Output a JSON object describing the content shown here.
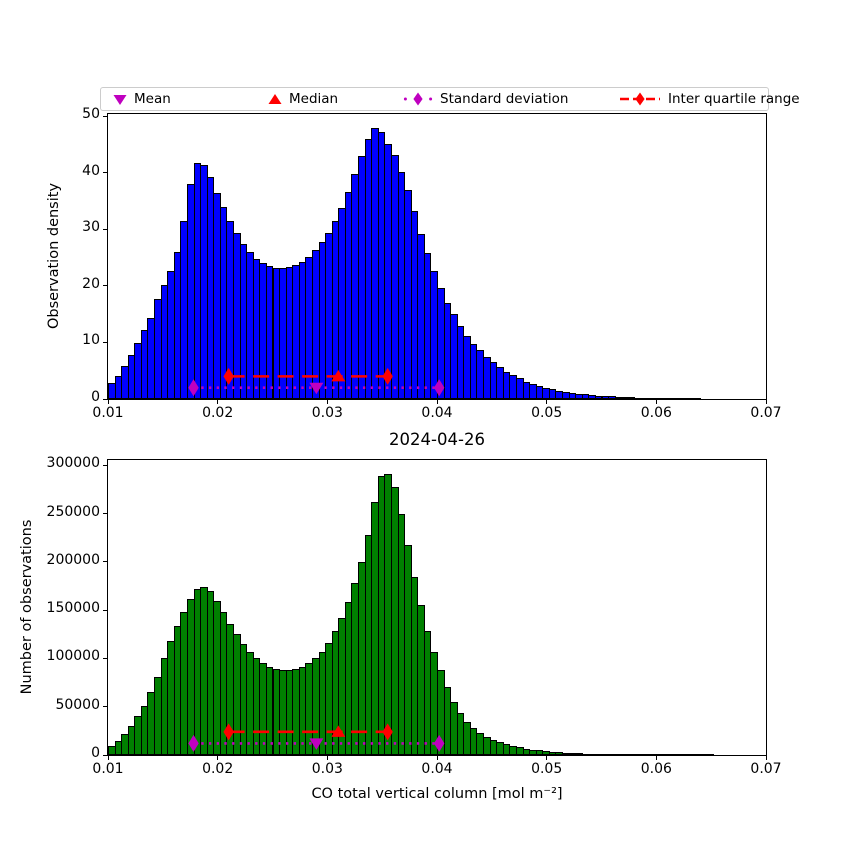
{
  "title": "2024-04-26",
  "xlabel": "CO total vertical column [mol m⁻²]",
  "colors": {
    "top_bars": "#0000ff",
    "bottom_bars": "#008000",
    "bar_edge": "#000000",
    "magenta": "#bf00bf",
    "red": "#ff0000",
    "legend_border": "#cccccc"
  },
  "legend": [
    {
      "label": "Mean",
      "marker": "triangle-down",
      "line": "none",
      "color": "#bf00bf"
    },
    {
      "label": "Median",
      "marker": "triangle-up",
      "line": "none",
      "color": "#ff0000"
    },
    {
      "label": "Standard deviation",
      "marker": "diamond",
      "line": "dotted",
      "color": "#bf00bf"
    },
    {
      "label": "Inter quartile range",
      "marker": "diamond",
      "line": "dashed",
      "color": "#ff0000"
    }
  ],
  "stats": {
    "mean": 0.029,
    "median": 0.031,
    "std_low": 0.0178,
    "std_high": 0.0402,
    "q1": 0.021,
    "q3": 0.0355
  },
  "chart_data": [
    {
      "type": "bar",
      "title": "",
      "ylabel": "Observation density",
      "bar_color": "#0000ff",
      "xlim": [
        0.01,
        0.07
      ],
      "ylim": [
        0,
        50.4
      ],
      "grid": false,
      "bin_start": 0.01,
      "bin_width": 0.0006,
      "n_bins": 100,
      "xticks": [
        0.01,
        0.02,
        0.03,
        0.04,
        0.05,
        0.06,
        0.07
      ],
      "xtick_labels": [
        "0.01",
        "0.02",
        "0.03",
        "0.04",
        "0.05",
        "0.06",
        "0.07"
      ],
      "yticks": [
        0,
        10,
        20,
        30,
        40,
        50
      ],
      "ytick_labels": [
        "0",
        "10",
        "20",
        "30",
        "40",
        "50"
      ],
      "marker_line_y": {
        "std": 2,
        "iqr": 4
      },
      "values": [
        2.9,
        4.1,
        5.8,
        7.8,
        9.9,
        12.2,
        14.3,
        17.7,
        20.1,
        22.7,
        26.0,
        31.5,
        38.0,
        41.8,
        41.3,
        39.3,
        36.5,
        34.0,
        31.5,
        29.3,
        27.5,
        26.0,
        24.8,
        24.0,
        23.5,
        23.2,
        23.2,
        23.3,
        23.7,
        24.3,
        25.2,
        26.3,
        27.7,
        29.4,
        31.4,
        33.8,
        36.6,
        39.8,
        43.0,
        46.0,
        48.0,
        47.2,
        45.1,
        43.1,
        40.2,
        37.0,
        33.2,
        29.1,
        25.8,
        22.6,
        19.7,
        17.0,
        15.1,
        13.0,
        11.2,
        9.8,
        8.6,
        7.4,
        6.5,
        5.6,
        4.7,
        4.2,
        3.7,
        3.0,
        2.7,
        2.3,
        2.0,
        1.7,
        1.5,
        1.3,
        1.1,
        0.9,
        0.8,
        0.7,
        0.6,
        0.5,
        0.45,
        0.4,
        0.33,
        0.28,
        0.23,
        0.2,
        0.16,
        0.13,
        0.1,
        0.08,
        0.06,
        0.04,
        0.02,
        0.01,
        0,
        0,
        0,
        0,
        0,
        0,
        0,
        0,
        0,
        0
      ]
    },
    {
      "type": "bar",
      "title": "2024-04-26",
      "ylabel": "Number of observations",
      "bar_color": "#008000",
      "xlim": [
        0.01,
        0.07
      ],
      "ylim": [
        0,
        305500
      ],
      "grid": false,
      "bin_start": 0.01,
      "bin_width": 0.0006,
      "n_bins": 100,
      "xticks": [
        0.01,
        0.02,
        0.03,
        0.04,
        0.05,
        0.06,
        0.07
      ],
      "xtick_labels": [
        "0.01",
        "0.02",
        "0.03",
        "0.04",
        "0.05",
        "0.06",
        "0.07"
      ],
      "yticks": [
        0,
        50000,
        100000,
        150000,
        200000,
        250000,
        300000
      ],
      "ytick_labels": [
        "0",
        "50000",
        "100000",
        "150000",
        "200000",
        "250000",
        "300000"
      ],
      "marker_line_y": {
        "std": 12000,
        "iqr": 24000
      },
      "values": [
        9000,
        15000,
        22000,
        30000,
        40000,
        51000,
        65000,
        81000,
        100000,
        118000,
        134000,
        148000,
        162000,
        172000,
        174000,
        170000,
        160000,
        148000,
        136000,
        125000,
        115000,
        107000,
        100000,
        95000,
        91500,
        89500,
        88000,
        88000,
        89000,
        91000,
        95000,
        100000,
        107000,
        116000,
        128000,
        142000,
        158000,
        178000,
        200000,
        228000,
        262000,
        289000,
        291000,
        278000,
        250000,
        218000,
        184000,
        155000,
        128000,
        107000,
        88000,
        70000,
        55000,
        43000,
        34000,
        27500,
        22500,
        18500,
        15500,
        13000,
        11000,
        9300,
        7900,
        6700,
        5700,
        4800,
        4100,
        3500,
        3000,
        2500,
        2100,
        1800,
        1500,
        1300,
        1100,
        900,
        750,
        620,
        510,
        420,
        340,
        280,
        230,
        180,
        140,
        110,
        85,
        60,
        40,
        25,
        15,
        8,
        0,
        0,
        0,
        0,
        0,
        0,
        0,
        0
      ]
    }
  ]
}
